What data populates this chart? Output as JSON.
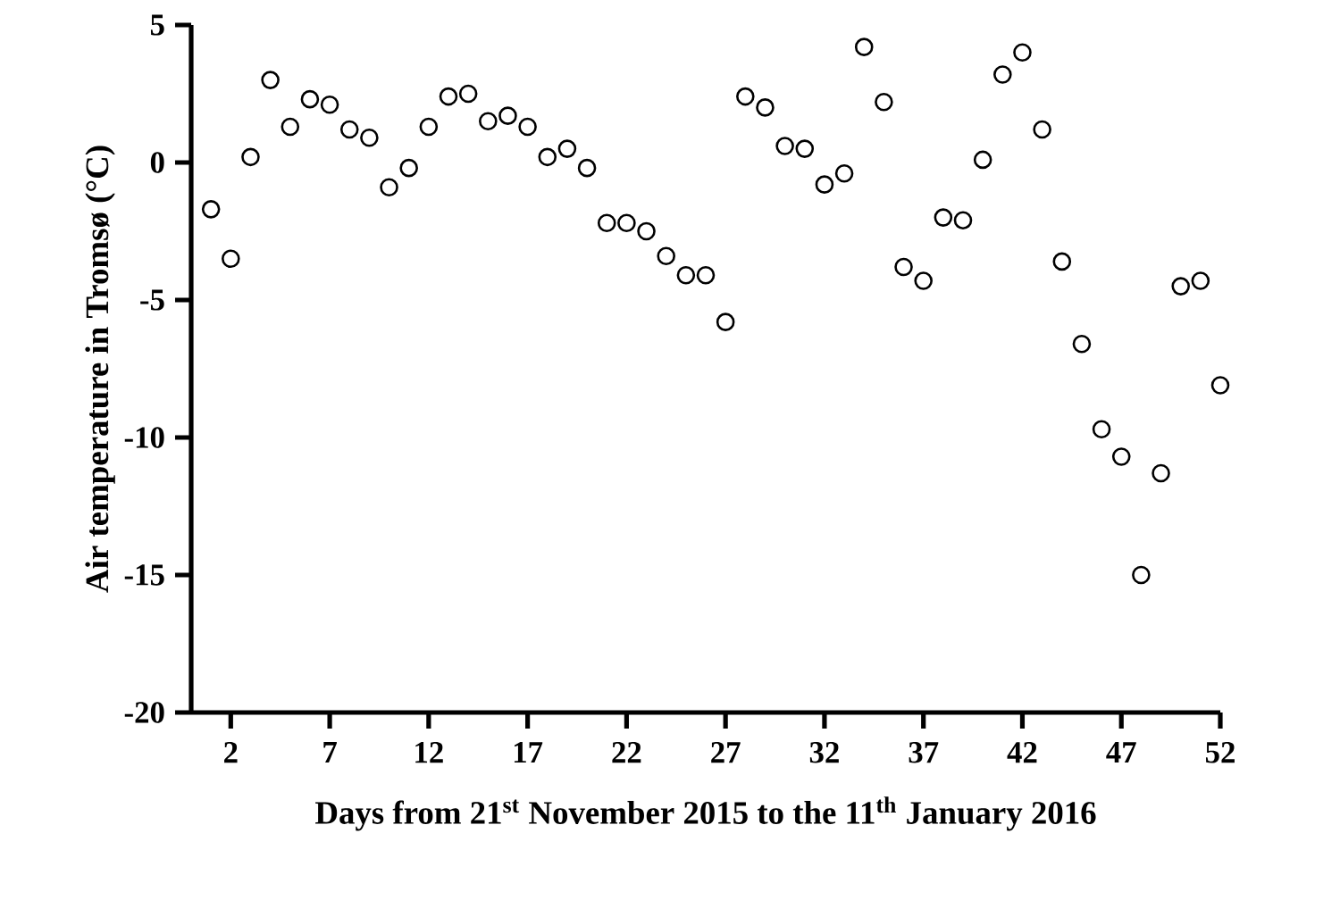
{
  "chart_data": {
    "type": "scatter",
    "xlabel": "Days from 21$^{st}$ November 2015 to the 11$^{th}$ January 2016",
    "ylabel": "Air temperature in Tromsø (°C)",
    "x": [
      1,
      2,
      3,
      4,
      5,
      6,
      7,
      8,
      9,
      10,
      11,
      12,
      13,
      14,
      15,
      16,
      17,
      18,
      19,
      20,
      21,
      22,
      23,
      24,
      25,
      26,
      27,
      28,
      29,
      30,
      31,
      32,
      33,
      34,
      35,
      36,
      37,
      38,
      39,
      40,
      41,
      42,
      43,
      44,
      45,
      46,
      47,
      48,
      49,
      50,
      51,
      52
    ],
    "values": [
      -1.7,
      -3.5,
      0.2,
      3.0,
      1.3,
      2.3,
      2.1,
      1.2,
      0.9,
      -0.9,
      -0.2,
      1.3,
      2.4,
      2.5,
      1.5,
      1.7,
      1.3,
      0.2,
      0.5,
      -0.2,
      -2.2,
      -2.2,
      -2.5,
      -3.4,
      -4.1,
      -4.1,
      -5.8,
      2.4,
      2.0,
      0.6,
      0.5,
      -0.8,
      -0.4,
      4.2,
      2.2,
      -3.8,
      -4.3,
      -2.0,
      -2.1,
      0.1,
      3.2,
      4.0,
      1.2,
      -3.6,
      -6.6,
      -9.7,
      -10.7,
      -15.0,
      -11.3,
      -4.5,
      -4.3,
      -8.1
    ],
    "color": "#000000",
    "marker": "circle",
    "xlim": [
      0,
      52
    ],
    "ylim": [
      -20,
      5
    ],
    "xticks": [
      2,
      7,
      12,
      17,
      22,
      27,
      32,
      37,
      42,
      47,
      52
    ],
    "yticks": [
      -20,
      -15,
      -10,
      -5,
      0,
      5
    ]
  }
}
